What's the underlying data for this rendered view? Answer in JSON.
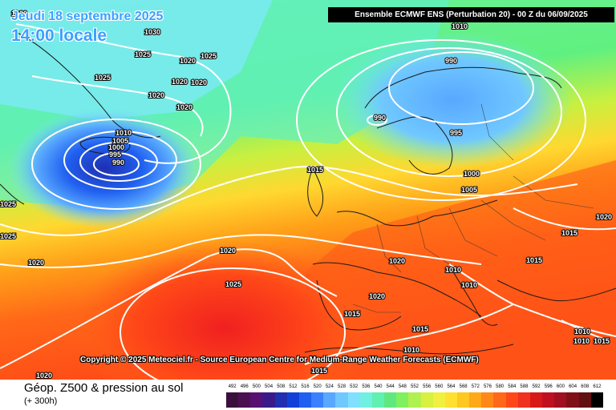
{
  "header": {
    "date": "Jeudi 18 septembre 2025",
    "local_time": "14:00 locale",
    "model_info": "Ensemble ECMWF ENS  (Perturbation 20)  -  00 Z du 06/09/2025"
  },
  "copyright": "Copyright © 2025 Meteociel.fr - Source European Centre for Medium-Range Weather Forecasts (ECMWF)",
  "footer": {
    "title": "Géop. Z500 & pression au sol",
    "subtitle": "(+ 300h)"
  },
  "scale": {
    "labels": [
      "492",
      "496",
      "500",
      "504",
      "508",
      "512",
      "516",
      "520",
      "524",
      "528",
      "532",
      "536",
      "540",
      "544",
      "548",
      "552",
      "556",
      "560",
      "564",
      "568",
      "572",
      "576",
      "580",
      "584",
      "588",
      "592",
      "596",
      "600",
      "604",
      "608",
      "612"
    ],
    "colors": [
      "#3b0f3b",
      "#4b1050",
      "#5a1070",
      "#3a1a8a",
      "#1f2fb0",
      "#1040d8",
      "#2060f0",
      "#3a80ff",
      "#58a8ff",
      "#70c8ff",
      "#80e0ff",
      "#70f0e0",
      "#60f0b0",
      "#60e880",
      "#80f060",
      "#b0f050",
      "#d8f040",
      "#f0f040",
      "#ffe030",
      "#ffc820",
      "#ffa818",
      "#ff8818",
      "#ff6818",
      "#ff4818",
      "#f03020",
      "#d81818",
      "#c01020",
      "#a01020",
      "#801018",
      "#601010",
      "#000000"
    ]
  },
  "isobars": [
    {
      "label": "1020"
    },
    {
      "label": "1030"
    },
    {
      "label": "1025"
    },
    {
      "label": "1025"
    },
    {
      "label": "1020"
    },
    {
      "label": "1025"
    },
    {
      "label": "1020"
    },
    {
      "label": "1020"
    },
    {
      "label": "1020"
    },
    {
      "label": "1020"
    },
    {
      "label": "1010"
    },
    {
      "label": "1005"
    },
    {
      "label": "1000"
    },
    {
      "label": "995"
    },
    {
      "label": "990"
    },
    {
      "label": "1025"
    },
    {
      "label": "1025"
    },
    {
      "label": "1020"
    },
    {
      "label": "1020"
    },
    {
      "label": "1025"
    },
    {
      "label": "1010"
    },
    {
      "label": "990"
    },
    {
      "label": "990"
    },
    {
      "label": "995"
    },
    {
      "label": "1015"
    },
    {
      "label": "1000"
    },
    {
      "label": "1005"
    },
    {
      "label": "1020"
    },
    {
      "label": "1015"
    },
    {
      "label": "1015"
    },
    {
      "label": "1020"
    },
    {
      "label": "1010"
    },
    {
      "label": "1010"
    },
    {
      "label": "1020"
    },
    {
      "label": "1015"
    },
    {
      "label": "1015"
    },
    {
      "label": "1010"
    },
    {
      "label": "1015"
    },
    {
      "label": "1010"
    },
    {
      "label": "1010"
    },
    {
      "label": "1020"
    },
    {
      "label": "1015"
    }
  ]
}
